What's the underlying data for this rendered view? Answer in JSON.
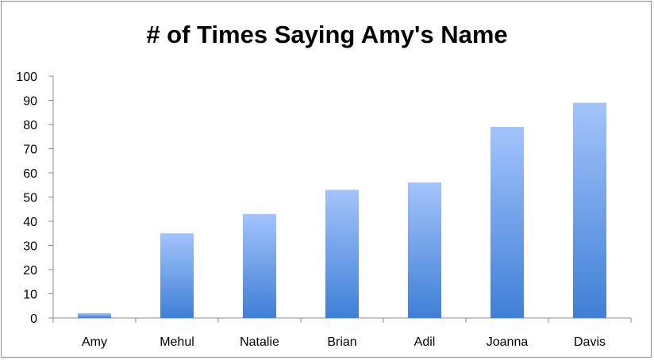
{
  "chart_data": {
    "type": "bar",
    "title": "# of Times Saying Amy's Name",
    "xlabel": "",
    "ylabel": "",
    "categories": [
      "Amy",
      "Mehul",
      "Natalie",
      "Brian",
      "Adil",
      "Joanna",
      "Davis"
    ],
    "values": [
      2,
      35,
      43,
      53,
      56,
      79,
      89
    ],
    "ylim": [
      0,
      100
    ],
    "yticks": [
      0,
      10,
      20,
      30,
      40,
      50,
      60,
      70,
      80,
      90,
      100
    ],
    "grid": false,
    "legend": "none",
    "colors": {
      "bar_top": "#a3c4fb",
      "bar_bottom": "#3f7fd6",
      "axis": "#8c8c8c"
    }
  }
}
